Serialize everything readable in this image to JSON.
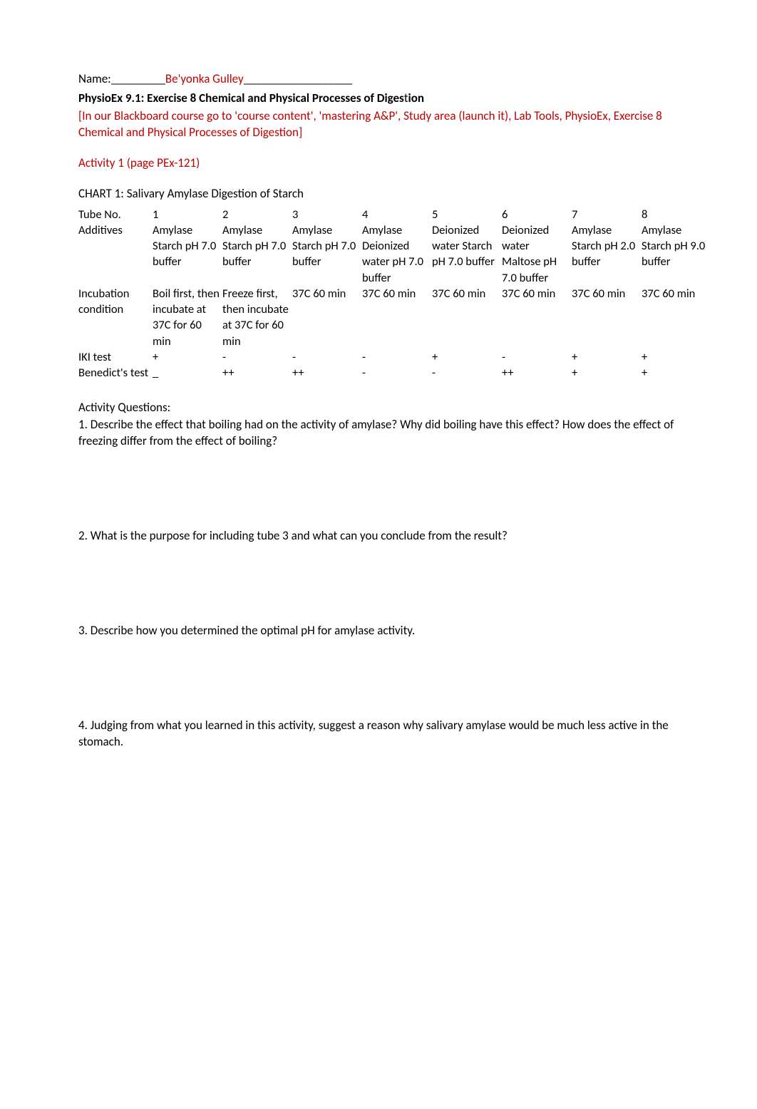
{
  "header": {
    "name_label": "Name:_________",
    "name_value": "Be'yonka Gulley",
    "name_trail": "__________________",
    "physio_prefix": "PhysioEx 9.1:  ",
    "physio_title_a": "Exercise 8 Chemical and Physical Processes of Diges",
    "physio_title_t": "t",
    "physio_title_b": "ion",
    "instructions": "[In our Blackboard course go to 'course content', 'mastering A&P', Study area (launch it), Lab Tools, PhysioEx, Exercise 8 Chemical and Physical Processes of Digestion]",
    "activity_h": "Activity 1 (page PEx-121)"
  },
  "chart": {
    "title": "CHART 1: Salivary Amylase Digestion of Starch",
    "row_labels": {
      "tube": "Tube No.",
      "additives": "Additives",
      "incubation": "Incubation condition",
      "iki": "IKI test",
      "benedict": "Benedict's test"
    },
    "cols": [
      {
        "tube": "1",
        "additives": "Amylase Starch pH 7.0 buffer",
        "incubation": "Boil first, then incubate at 37C for 60 min",
        "iki": "+",
        "benedict": "_"
      },
      {
        "tube": "2",
        "additives": "Amylase Starch pH 7.0 buffer",
        "incubation": "Freeze first, then incubate at 37C for 60 min",
        "iki": "-",
        "benedict": "++"
      },
      {
        "tube": "3",
        "additives": "Amylase Starch pH 7.0 buffer",
        "incubation": "37C 60 min",
        "iki": "-",
        "benedict": "++"
      },
      {
        "tube": "4",
        "additives": "Amylase Deionized water pH 7.0 buffer",
        "incubation": "37C 60 min",
        "iki": "-",
        "benedict": "-"
      },
      {
        "tube": "5",
        "additives": "Deionized water Starch pH 7.0 buffer",
        "incubation": "37C 60 min",
        "iki": "+",
        "benedict": "-"
      },
      {
        "tube": "6",
        "additives": "Deionized water Maltose pH 7.0 buffer",
        "incubation": "37C 60 min",
        "iki": "-",
        "benedict": "++"
      },
      {
        "tube": "7",
        "additives": "Amylase Starch pH 2.0 buffer",
        "incubation": "37C 60 min",
        "iki": "+",
        "benedict": "+"
      },
      {
        "tube": "8",
        "additives": "Amylase Starch pH 9.0 buffer",
        "incubation": "37C 60 min",
        "iki": "+",
        "benedict": "+"
      }
    ]
  },
  "questions": {
    "heading": "Activity Questions:",
    "q1": "1. Describe the effect that boiling had on the activity of amylase? Why did boiling have this effect? How does the effect of freezing differ from the effect of boiling?",
    "q2": "2. What is the purpose for including tube 3 and what can you conclude from the result?",
    "q3": "3. Describe how you determined the optimal pH for amylase activity.",
    "q4": "4. Judging from what you learned in this activity, suggest a reason why salivary amylase would be much less active in the stomach."
  }
}
